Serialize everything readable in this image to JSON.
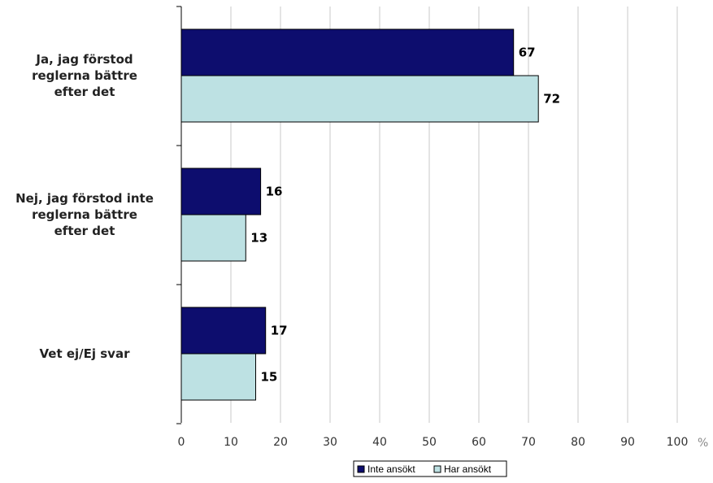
{
  "chart_data": {
    "type": "bar",
    "orientation": "horizontal",
    "categories": [
      [
        "Ja, jag förstod",
        "reglerna bättre",
        "efter det"
      ],
      [
        "Nej, jag förstod inte",
        "reglerna bättre",
        "efter det"
      ],
      [
        "Vet ej/Ej svar"
      ]
    ],
    "series": [
      {
        "name": "Inte ansökt",
        "values": [
          67,
          16,
          17
        ],
        "color": "#0d0d6e"
      },
      {
        "name": "Har ansökt",
        "values": [
          72,
          13,
          15
        ],
        "color": "#bde1e3"
      }
    ],
    "xlim": [
      0,
      100
    ],
    "xticks": [
      0,
      10,
      20,
      30,
      40,
      50,
      60,
      70,
      80,
      90,
      100
    ],
    "unit": "%",
    "grid": true,
    "legend_position": "bottom"
  }
}
